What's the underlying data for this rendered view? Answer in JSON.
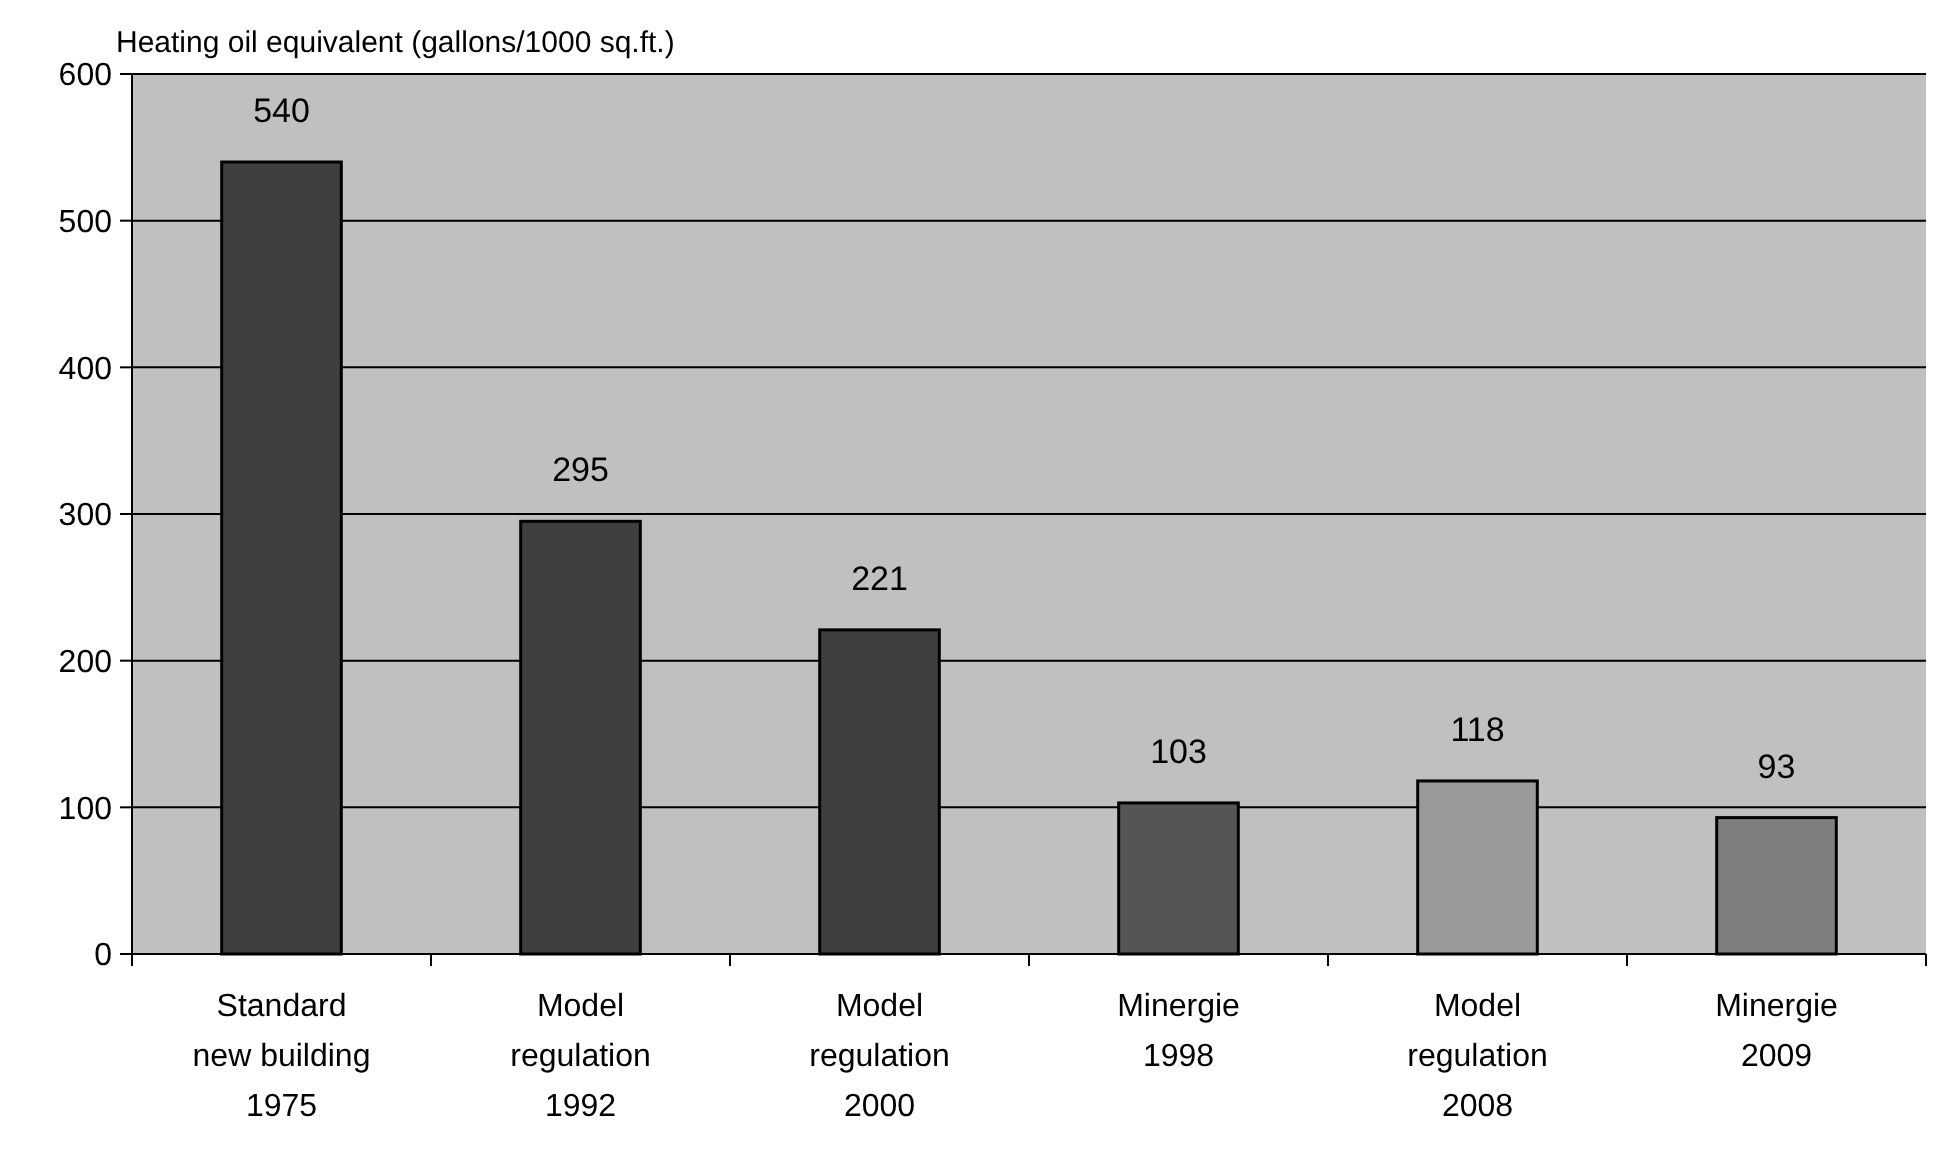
{
  "chart_data": {
    "type": "bar",
    "ylabel": "Heating oil equivalent (gallons/1000 sq.ft.)",
    "categories": [
      "Standard\nnew building\n1975",
      "Model\nregulation\n1992",
      "Model\nregulation\n2000",
      "Minergie\n1998",
      "Model\nregulation\n2008",
      "Minergie\n2009"
    ],
    "values": [
      540,
      295,
      221,
      103,
      118,
      93
    ],
    "colors": [
      "#3f3f3f",
      "#3f3f3f",
      "#3f3f3f",
      "#555555",
      "#9a9a9a",
      "#7f7f7f"
    ],
    "ylim": [
      0,
      600
    ],
    "yticks": [
      0,
      100,
      200,
      300,
      400,
      500,
      600
    ],
    "grid": "y",
    "data_labels": true
  }
}
